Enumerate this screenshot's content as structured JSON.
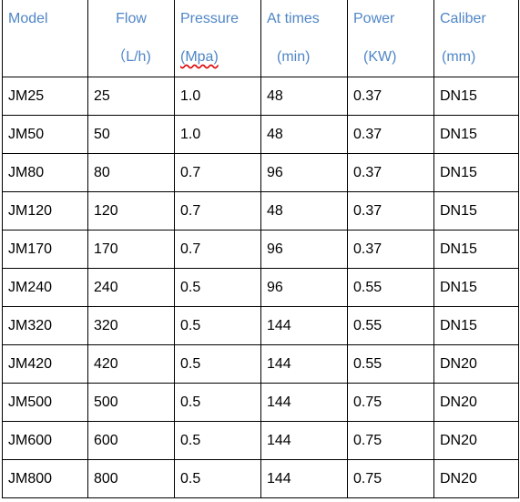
{
  "table": {
    "header": [
      [
        "Model"
      ],
      [
        "Flow",
        "（L/h)"
      ],
      [
        "Pressure",
        "(Mpa)"
      ],
      [
        "At times",
        "(min)"
      ],
      [
        "Power",
        "(KW)"
      ],
      [
        "Caliber",
        "(mm)"
      ]
    ],
    "rows": [
      [
        "JM25",
        "25",
        "1.0",
        "48",
        "0.37",
        "DN15"
      ],
      [
        "JM50",
        "50",
        "1.0",
        "48",
        "0.37",
        "DN15"
      ],
      [
        "JM80",
        "80",
        "0.7",
        "96",
        "0.37",
        "DN15"
      ],
      [
        "JM120",
        "120",
        "0.7",
        "48",
        "0.37",
        "DN15"
      ],
      [
        "JM170",
        "170",
        "0.7",
        "96",
        "0.37",
        "DN15"
      ],
      [
        "JM240",
        "240",
        "0.5",
        "96",
        "0.55",
        "DN15"
      ],
      [
        "JM320",
        "320",
        "0.5",
        "144",
        "0.55",
        "DN15"
      ],
      [
        "JM420",
        "420",
        "0.5",
        "144",
        "0.55",
        "DN20"
      ],
      [
        "JM500",
        "500",
        "0.5",
        "144",
        "0.75",
        "DN20"
      ],
      [
        "JM600",
        "600",
        "0.5",
        "144",
        "0.75",
        "DN20"
      ],
      [
        "JM800",
        "800",
        "0.5",
        "144",
        "0.75",
        "DN20"
      ]
    ]
  }
}
